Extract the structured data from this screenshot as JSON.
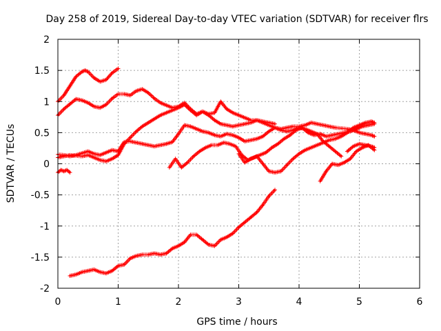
{
  "chart_data": {
    "type": "scatter",
    "title": "Day 258 of 2019, Sidereal Day-to-day VTEC variation (SDTVAR) for receiver flrs",
    "xlabel": "GPS time / hours",
    "ylabel": "SDTVAR / TECUs",
    "xlim": [
      0,
      6
    ],
    "ylim": [
      -2,
      2
    ],
    "xticks": [
      "0",
      "1",
      "2",
      "3",
      "4",
      "5",
      "6"
    ],
    "yticks": [
      "-2",
      "-1.5",
      "-1",
      "-0.5",
      "0",
      "0.5",
      "1",
      "1.5",
      "2"
    ],
    "grid": true,
    "marker": "cross",
    "color": "#ff0000",
    "series": [
      {
        "x": [
          0,
          0.1,
          0.2,
          0.3,
          0.4,
          0.45,
          0.5,
          0.6,
          0.7,
          0.8,
          0.9,
          1.0
        ],
        "y": [
          1.0,
          1.1,
          1.25,
          1.4,
          1.48,
          1.5,
          1.48,
          1.38,
          1.32,
          1.35,
          1.46,
          1.53
        ]
      },
      {
        "x": [
          0,
          0.1,
          0.2,
          0.3,
          0.4,
          0.5,
          0.6,
          0.7,
          0.8,
          0.9,
          1.0,
          1.1,
          1.2,
          1.3,
          1.4,
          1.5,
          1.6,
          1.7,
          1.8,
          1.9,
          2.0,
          2.1,
          2.2,
          2.3,
          2.4,
          2.5,
          2.6,
          2.7,
          2.8,
          2.9,
          3.0,
          3.1,
          3.2,
          3.3,
          3.4,
          3.5,
          3.6,
          3.7,
          3.8,
          3.9,
          4.0,
          4.1,
          4.2,
          4.3,
          4.4,
          4.5,
          4.6,
          4.7
        ],
        "y": [
          0.78,
          0.88,
          0.96,
          1.04,
          1.02,
          0.98,
          0.92,
          0.9,
          0.95,
          1.05,
          1.12,
          1.12,
          1.1,
          1.17,
          1.2,
          1.14,
          1.05,
          0.98,
          0.94,
          0.9,
          0.92,
          0.98,
          0.88,
          0.8,
          0.84,
          0.78,
          0.7,
          0.64,
          0.62,
          0.6,
          0.62,
          0.64,
          0.66,
          0.7,
          0.66,
          0.62,
          0.58,
          0.54,
          0.52,
          0.54,
          0.58,
          0.56,
          0.52,
          0.48,
          0.36,
          0.28,
          0.2,
          0.12
        ]
      },
      {
        "x": [
          0,
          0.1,
          0.2,
          0.3,
          0.4,
          0.5,
          0.6,
          0.7,
          0.8,
          0.9,
          1.0,
          1.1,
          1.2,
          1.3,
          1.4,
          1.5,
          1.6,
          1.7,
          1.8,
          1.9,
          2.0,
          2.1,
          2.2,
          2.3,
          2.4,
          2.5,
          2.6,
          2.7,
          2.8,
          2.9,
          3.0,
          3.1,
          3.2,
          3.3,
          3.4,
          3.5,
          3.6,
          3.7,
          3.8,
          3.9,
          4.0,
          4.1,
          4.2,
          4.3,
          4.4,
          4.5,
          4.6,
          4.7,
          4.8,
          4.9,
          5.0,
          5.1,
          5.2,
          5.25
        ],
        "y": [
          0.15,
          0.14,
          0.12,
          0.14,
          0.17,
          0.2,
          0.16,
          0.14,
          0.18,
          0.22,
          0.2,
          0.35,
          0.36,
          0.34,
          0.32,
          0.3,
          0.28,
          0.3,
          0.32,
          0.35,
          0.48,
          0.62,
          0.6,
          0.56,
          0.52,
          0.5,
          0.46,
          0.44,
          0.48,
          0.46,
          0.42,
          0.36,
          0.38,
          0.4,
          0.44,
          0.52,
          0.58,
          0.56,
          0.58,
          0.6,
          0.6,
          0.62,
          0.66,
          0.64,
          0.62,
          0.6,
          0.58,
          0.57,
          0.56,
          0.54,
          0.5,
          0.48,
          0.46,
          0.44
        ]
      },
      {
        "x": [
          0,
          0.1,
          0.2,
          0.3,
          0.4,
          0.5,
          0.6,
          0.7,
          0.8,
          0.9,
          1.0,
          1.1,
          1.2,
          1.3,
          1.4,
          1.5,
          1.6,
          1.7,
          1.8,
          1.9,
          2.0,
          2.1,
          2.2,
          2.3,
          2.4,
          2.5,
          2.6,
          2.7,
          2.8,
          2.9,
          3.0,
          3.1,
          3.2,
          3.3,
          3.4,
          3.5,
          3.6
        ],
        "y": [
          0.1,
          0.12,
          0.14,
          0.13,
          0.12,
          0.14,
          0.1,
          0.06,
          0.04,
          0.08,
          0.14,
          0.32,
          0.42,
          0.52,
          0.6,
          0.66,
          0.72,
          0.78,
          0.82,
          0.86,
          0.9,
          0.95,
          0.86,
          0.78,
          0.84,
          0.8,
          0.82,
          1.0,
          0.88,
          0.82,
          0.78,
          0.74,
          0.7,
          0.7,
          0.68,
          0.66,
          0.64
        ]
      },
      {
        "x": [
          1.85,
          1.95,
          2.05,
          2.15,
          2.25,
          2.35,
          2.45,
          2.55,
          2.65,
          2.75,
          2.85,
          2.95,
          3.05,
          3.15,
          3.25,
          3.35,
          3.45,
          3.55,
          3.65,
          3.75,
          3.85,
          3.95,
          4.05,
          4.15,
          4.25,
          4.35,
          4.45,
          4.55,
          4.65,
          4.75,
          4.85,
          4.95,
          5.05,
          5.15,
          5.25
        ],
        "y": [
          -0.06,
          0.08,
          -0.06,
          0.02,
          0.12,
          0.2,
          0.26,
          0.3,
          0.3,
          0.34,
          0.32,
          0.28,
          0.14,
          0.06,
          0.1,
          0.14,
          0.18,
          0.26,
          0.32,
          0.4,
          0.46,
          0.54,
          0.58,
          0.5,
          0.46,
          0.48,
          0.44,
          0.46,
          0.48,
          0.5,
          0.52,
          0.56,
          0.6,
          0.62,
          0.64
        ]
      },
      {
        "x": [
          3.0,
          3.1,
          3.2,
          3.3,
          3.4,
          3.5,
          3.6,
          3.7,
          3.8,
          3.9,
          4.0,
          4.1,
          4.2,
          4.3,
          4.4,
          4.5,
          4.6,
          4.7,
          4.8,
          4.9,
          5.0,
          5.1,
          5.2,
          5.25
        ],
        "y": [
          0.16,
          0.02,
          0.08,
          0.12,
          0.0,
          -0.12,
          -0.14,
          -0.12,
          -0.02,
          0.08,
          0.16,
          0.22,
          0.26,
          0.3,
          0.34,
          0.38,
          0.4,
          0.44,
          0.5,
          0.58,
          0.62,
          0.66,
          0.68,
          0.66
        ]
      },
      {
        "x": [
          4.35,
          4.45,
          4.55,
          4.65,
          4.75,
          4.85,
          4.95,
          5.05,
          5.15,
          5.25
        ],
        "y": [
          -0.28,
          -0.12,
          0.0,
          -0.02,
          0.02,
          0.08,
          0.2,
          0.26,
          0.3,
          0.22
        ]
      },
      {
        "x": [
          4.8,
          4.9,
          5.0,
          5.1,
          5.2,
          5.25
        ],
        "y": [
          0.2,
          0.28,
          0.32,
          0.3,
          0.28,
          0.26
        ]
      },
      {
        "x": [
          0,
          0.05,
          0.1,
          0.15,
          0.2
        ],
        "y": [
          -0.14,
          -0.1,
          -0.12,
          -0.1,
          -0.14
        ]
      },
      {
        "x": [
          0.2,
          0.3,
          0.4,
          0.5,
          0.6,
          0.7,
          0.8,
          0.9,
          1.0,
          1.1,
          1.2,
          1.3,
          1.4,
          1.5,
          1.6,
          1.7,
          1.8,
          1.9,
          2.0,
          2.1,
          2.2,
          2.3,
          2.4,
          2.5,
          2.6,
          2.7,
          2.8,
          2.9,
          3.0,
          3.1,
          3.2,
          3.3,
          3.4,
          3.5,
          3.6
        ],
        "y": [
          -1.8,
          -1.78,
          -1.74,
          -1.72,
          -1.7,
          -1.74,
          -1.76,
          -1.72,
          -1.64,
          -1.62,
          -1.52,
          -1.48,
          -1.46,
          -1.46,
          -1.44,
          -1.46,
          -1.44,
          -1.36,
          -1.32,
          -1.26,
          -1.14,
          -1.14,
          -1.22,
          -1.3,
          -1.32,
          -1.22,
          -1.18,
          -1.12,
          -1.02,
          -0.94,
          -0.86,
          -0.78,
          -0.66,
          -0.52,
          -0.42
        ]
      }
    ]
  }
}
